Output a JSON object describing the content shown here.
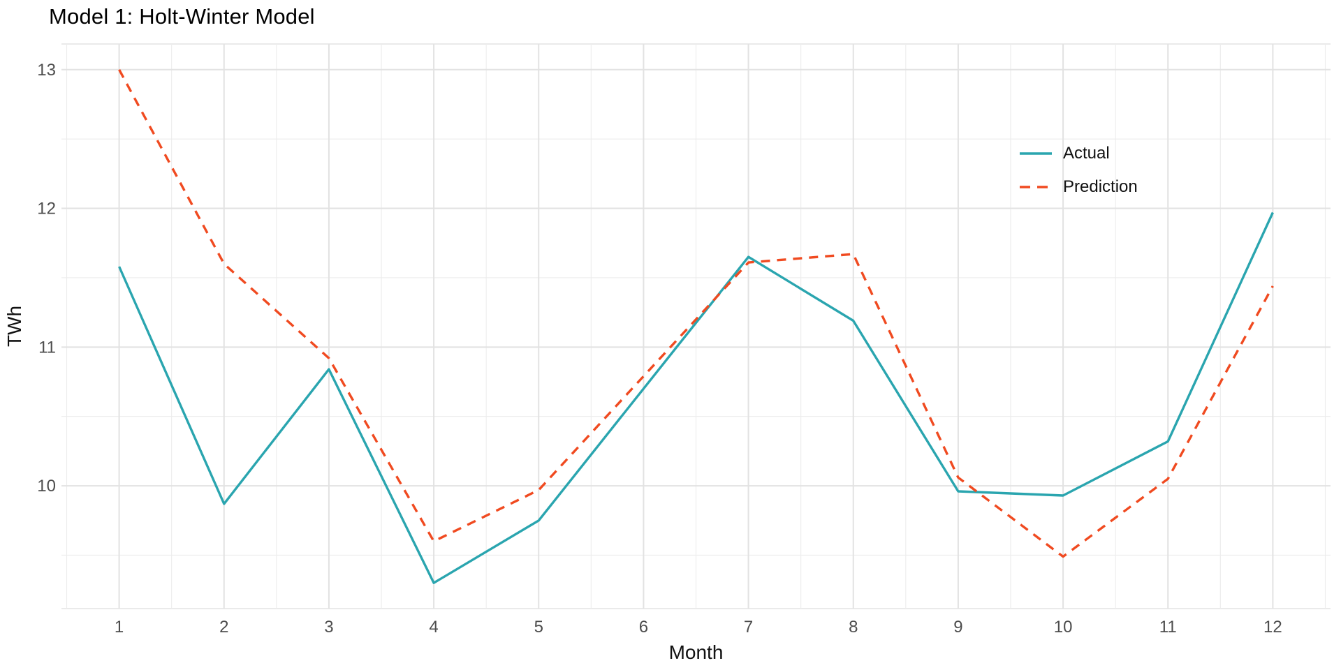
{
  "chart_data": {
    "type": "line",
    "title": "Model 1: Holt-Winter Model",
    "xlabel": "Month",
    "ylabel": "TWh",
    "x": [
      1,
      2,
      3,
      4,
      5,
      6,
      7,
      8,
      9,
      10,
      11,
      12
    ],
    "x_tick_labels": [
      "1",
      "2",
      "3",
      "4",
      "5",
      "6",
      "7",
      "8",
      "9",
      "10",
      "11",
      "12"
    ],
    "y_ticks": [
      10,
      11,
      12,
      13
    ],
    "y_minor_ticks": [
      9.5,
      10.5,
      11.5,
      12.5
    ],
    "x_minor_ticks": [
      0.5,
      1.5,
      2.5,
      3.5,
      4.5,
      5.5,
      6.5,
      7.5,
      8.5,
      9.5,
      10.5,
      11.5,
      12.5
    ],
    "xlim": [
      0.45,
      12.55
    ],
    "ylim": [
      9.115,
      13.185
    ],
    "grid": "major-and-minor",
    "legend_position": "inside-upper-right",
    "series": [
      {
        "name": "Actual",
        "color": "#2AA5AF",
        "dash": "solid",
        "values": [
          11.58,
          9.87,
          10.84,
          9.3,
          9.75,
          10.7,
          11.65,
          11.19,
          9.96,
          9.93,
          10.32,
          11.97
        ]
      },
      {
        "name": "Prediction",
        "color": "#F04A20",
        "dash": "dashed",
        "values": [
          13.0,
          11.6,
          10.92,
          9.6,
          9.97,
          10.79,
          11.61,
          11.67,
          10.06,
          9.49,
          10.05,
          11.44
        ]
      }
    ],
    "colors": {
      "grid_major": "#E2E2E2",
      "grid_minor": "#ECECEC",
      "panel_edge": "#E4E4E4",
      "tick_label": "#4d4d4d",
      "title": "#000000"
    }
  }
}
